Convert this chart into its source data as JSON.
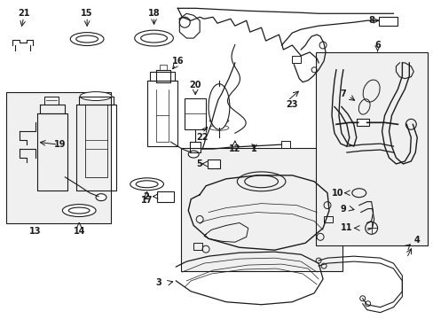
{
  "bg_color": "#ffffff",
  "line_color": "#1a1a1a",
  "box_fill": "#f0f0f0",
  "fig_width": 4.89,
  "fig_height": 3.6,
  "dpi": 100
}
